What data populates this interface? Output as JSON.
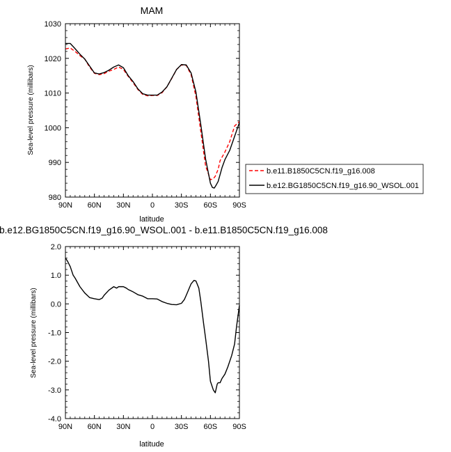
{
  "chart_data": [
    {
      "type": "line",
      "title": "MAM",
      "xlabel": "latitude",
      "ylabel": "Sea-level pressure (millibars)",
      "xlim": [
        90,
        -90
      ],
      "ylim": [
        980,
        1030
      ],
      "xticks": [
        90,
        60,
        30,
        0,
        -30,
        -60,
        -90
      ],
      "xticklabels": [
        "90N",
        "60N",
        "30N",
        "0",
        "30S",
        "60S",
        "90S"
      ],
      "yticks": [
        980,
        990,
        1000,
        1010,
        1020,
        1030
      ],
      "yticklabels": [
        "980",
        "990",
        "1000",
        "1010",
        "1020",
        "1030"
      ],
      "legend": {
        "placement": "right-outside"
      },
      "series": [
        {
          "name": "b.e11.B1850C5CN.f19_g16.008",
          "color": "#ff0000",
          "dash": "dashed",
          "x": [
            90,
            85,
            80,
            75,
            70,
            65,
            60,
            55,
            50,
            45,
            40,
            35,
            30,
            25,
            20,
            15,
            10,
            5,
            0,
            -5,
            -10,
            -15,
            -20,
            -25,
            -30,
            -35,
            -40,
            -45,
            -50,
            -55,
            -60,
            -63,
            -65,
            -68,
            -70,
            -75,
            -80,
            -85,
            -90
          ],
          "y": [
            1022.7,
            1023.0,
            1022.0,
            1020.8,
            1019.8,
            1017.5,
            1015.7,
            1015.3,
            1015.6,
            1016.3,
            1016.8,
            1017.5,
            1016.8,
            1014.8,
            1013.0,
            1011.0,
            1009.6,
            1009.2,
            1009.3,
            1009.3,
            1010.1,
            1011.8,
            1014.2,
            1016.8,
            1018.1,
            1018.0,
            1015.3,
            1009.0,
            999.0,
            989.0,
            985.0,
            985.3,
            986.0,
            988.0,
            990.5,
            993.0,
            996.0,
            1000.5,
            1001.8
          ]
        },
        {
          "name": "b.e12.BG1850C5CN.f19_g16.90_WSOL.001",
          "color": "#000000",
          "dash": "solid",
          "x": [
            90,
            85,
            80,
            75,
            70,
            65,
            60,
            55,
            50,
            45,
            40,
            35,
            30,
            25,
            20,
            15,
            10,
            5,
            0,
            -5,
            -10,
            -15,
            -20,
            -25,
            -30,
            -35,
            -40,
            -45,
            -50,
            -55,
            -60,
            -62,
            -64,
            -66,
            -68,
            -70,
            -72,
            -75,
            -80,
            -85,
            -90
          ],
          "y": [
            1024.3,
            1024.3,
            1022.8,
            1021.2,
            1019.8,
            1017.8,
            1015.8,
            1015.5,
            1015.9,
            1016.6,
            1017.5,
            1018.1,
            1017.3,
            1015.0,
            1013.3,
            1011.2,
            1009.8,
            1009.4,
            1009.4,
            1009.4,
            1010.3,
            1011.8,
            1014.3,
            1016.8,
            1018.2,
            1018.1,
            1015.8,
            1010.3,
            1001.0,
            991.0,
            984.0,
            982.8,
            982.6,
            983.5,
            984.5,
            986.5,
            988.5,
            990.8,
            993.5,
            997.5,
            1001.5
          ]
        }
      ]
    },
    {
      "type": "line",
      "title": "b.e12.BG1850C5CN.f19_g16.90_WSOL.001 - b.e11.B1850C5CN.f19_g16.008",
      "xlabel": "latitude",
      "ylabel": "Sea-level pressure (millibars)",
      "xlim": [
        90,
        -90
      ],
      "ylim": [
        -4.0,
        2.0
      ],
      "xticks": [
        90,
        60,
        30,
        0,
        -30,
        -60,
        -90
      ],
      "xticklabels": [
        "90N",
        "60N",
        "30N",
        "0",
        "30S",
        "60S",
        "90S"
      ],
      "yticks": [
        -4.0,
        -3.0,
        -2.0,
        -1.0,
        0.0,
        1.0,
        2.0
      ],
      "yticklabels": [
        "-4.0",
        "-3.0",
        "-2.0",
        "-1.0",
        "0.0",
        "1.0",
        "2.0"
      ],
      "series": [
        {
          "color": "#000000",
          "dash": "solid",
          "x": [
            90,
            88,
            85,
            82,
            80,
            75,
            70,
            65,
            60,
            55,
            52,
            50,
            45,
            40,
            37,
            35,
            30,
            27,
            25,
            20,
            15,
            10,
            5,
            0,
            -5,
            -10,
            -15,
            -20,
            -25,
            -30,
            -33,
            -35,
            -40,
            -43,
            -45,
            -48,
            -50,
            -53,
            -55,
            -58,
            -60,
            -63,
            -65,
            -67,
            -68,
            -70,
            -72,
            -75,
            -78,
            -80,
            -82,
            -85,
            -87,
            -90
          ],
          "y": [
            1.6,
            1.5,
            1.3,
            1.0,
            0.9,
            0.6,
            0.38,
            0.22,
            0.18,
            0.15,
            0.2,
            0.3,
            0.48,
            0.6,
            0.55,
            0.6,
            0.6,
            0.55,
            0.5,
            0.42,
            0.32,
            0.27,
            0.18,
            0.18,
            0.17,
            0.08,
            0.02,
            -0.02,
            -0.03,
            0.02,
            0.15,
            0.3,
            0.7,
            0.82,
            0.8,
            0.55,
            0.1,
            -0.7,
            -1.2,
            -2.0,
            -2.7,
            -3.0,
            -3.1,
            -2.8,
            -2.75,
            -2.75,
            -2.6,
            -2.45,
            -2.2,
            -2.0,
            -1.8,
            -1.4,
            -0.8,
            -0.05
          ]
        }
      ]
    }
  ]
}
